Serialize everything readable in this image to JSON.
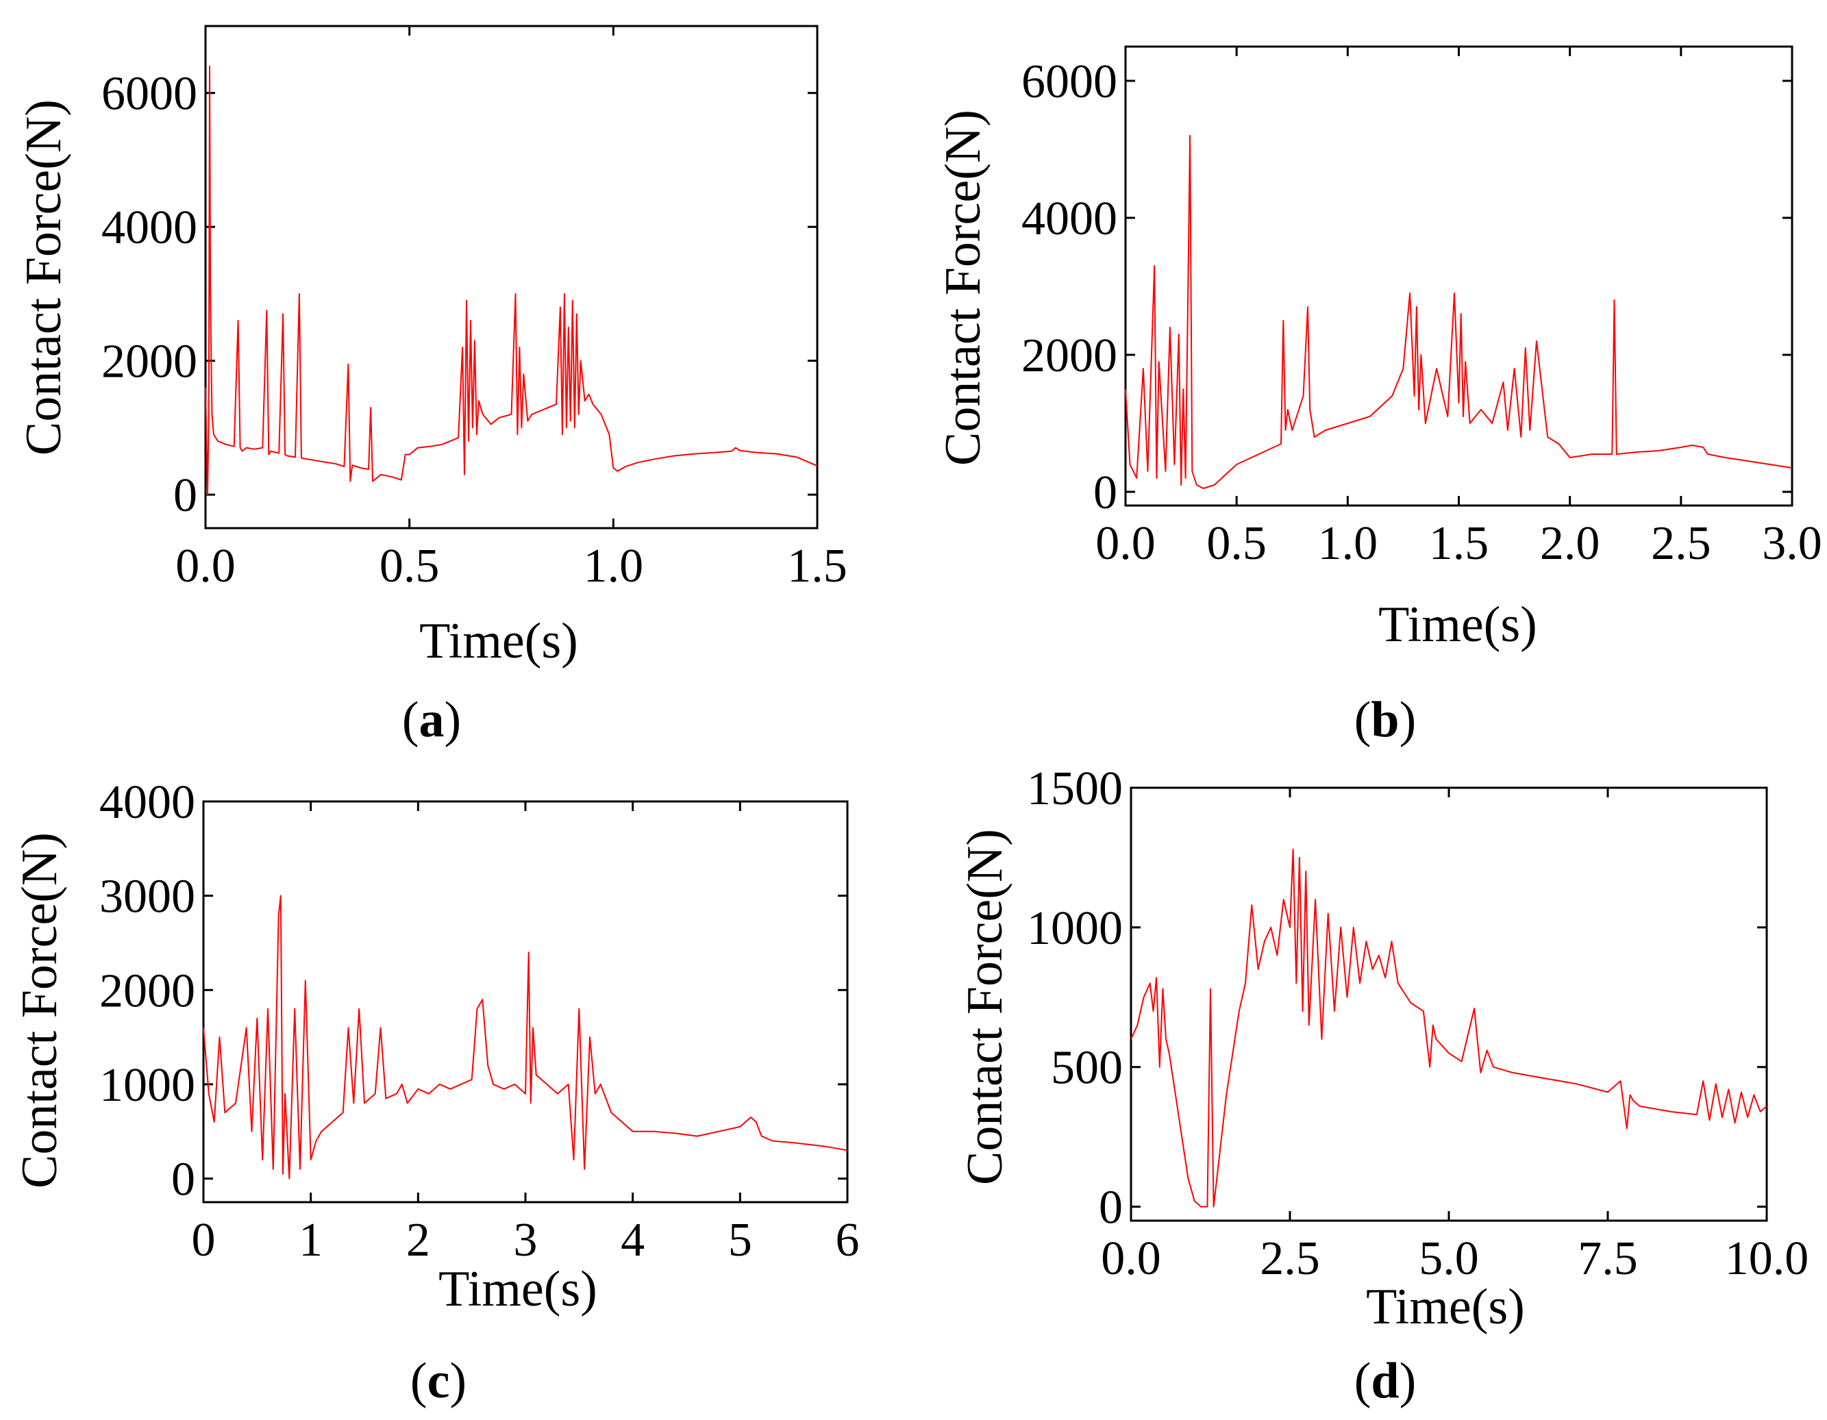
{
  "figure": {
    "panels": [
      "a",
      "b",
      "c",
      "d"
    ]
  },
  "chart_data": [
    {
      "id": "a",
      "type": "line",
      "caption_letter": "a",
      "caption_open": "(",
      "caption_close": ")",
      "xlabel": "Time(s)",
      "ylabel": "Contact Force(N)",
      "xlim": [
        0,
        1.5
      ],
      "ylim": [
        -500,
        7000
      ],
      "xticks": [
        0.0,
        0.5,
        1.0,
        1.5
      ],
      "xtick_labels": [
        "0.0",
        "0.5",
        "1.0",
        "1.5"
      ],
      "yticks": [
        0,
        2000,
        4000,
        6000
      ],
      "ytick_labels": [
        "0",
        "2000",
        "4000",
        "6000"
      ],
      "series": [
        {
          "name": "Contact force",
          "color": "#ff0000",
          "x": [
            0.0,
            0.005,
            0.008,
            0.01,
            0.012,
            0.014,
            0.016,
            0.02,
            0.03,
            0.05,
            0.07,
            0.08,
            0.085,
            0.09,
            0.1,
            0.12,
            0.14,
            0.15,
            0.155,
            0.16,
            0.18,
            0.19,
            0.195,
            0.2,
            0.22,
            0.23,
            0.235,
            0.24,
            0.26,
            0.28,
            0.3,
            0.32,
            0.34,
            0.35,
            0.355,
            0.36,
            0.38,
            0.4,
            0.405,
            0.41,
            0.43,
            0.46,
            0.48,
            0.49,
            0.5,
            0.52,
            0.55,
            0.58,
            0.6,
            0.62,
            0.63,
            0.635,
            0.64,
            0.645,
            0.65,
            0.655,
            0.66,
            0.665,
            0.67,
            0.68,
            0.7,
            0.72,
            0.75,
            0.76,
            0.765,
            0.77,
            0.775,
            0.78,
            0.79,
            0.8,
            0.82,
            0.84,
            0.86,
            0.87,
            0.875,
            0.88,
            0.885,
            0.89,
            0.895,
            0.9,
            0.905,
            0.91,
            0.915,
            0.92,
            0.93,
            0.94,
            0.95,
            0.97,
            0.99,
            1.0,
            1.01,
            1.03,
            1.06,
            1.1,
            1.15,
            1.2,
            1.25,
            1.29,
            1.3,
            1.31,
            1.35,
            1.4,
            1.45,
            1.5
          ],
          "y": [
            1600,
            0,
            1200,
            6400,
            3200,
            2000,
            1200,
            900,
            800,
            750,
            720,
            2600,
            700,
            650,
            700,
            680,
            700,
            2750,
            600,
            650,
            620,
            2700,
            600,
            580,
            560,
            3000,
            550,
            540,
            520,
            500,
            480,
            460,
            420,
            1950,
            200,
            440,
            400,
            380,
            1300,
            200,
            300,
            260,
            220,
            600,
            600,
            700,
            720,
            750,
            800,
            850,
            2200,
            300,
            2900,
            800,
            2600,
            1000,
            2300,
            900,
            1400,
            1200,
            1050,
            1150,
            1200,
            3000,
            900,
            2200,
            1000,
            1800,
            1100,
            1200,
            1250,
            1300,
            1350,
            2800,
            900,
            3000,
            1000,
            2500,
            1100,
            2900,
            1000,
            2700,
            1200,
            2000,
            1400,
            1500,
            1350,
            1200,
            900,
            400,
            350,
            420,
            480,
            530,
            580,
            610,
            630,
            650,
            700,
            660,
            630,
            610,
            560,
            430
          ]
        }
      ]
    },
    {
      "id": "b",
      "type": "line",
      "caption_letter": "b",
      "caption_open": "(",
      "caption_close": ")",
      "xlabel": "Time(s)",
      "ylabel": "Contact Force(N)",
      "xlim": [
        0,
        3.0
      ],
      "ylim": [
        -200,
        6500
      ],
      "xticks": [
        0.0,
        0.5,
        1.0,
        1.5,
        2.0,
        2.5,
        3.0
      ],
      "xtick_labels": [
        "0.0",
        "0.5",
        "1.0",
        "1.5",
        "2.0",
        "2.5",
        "3.0"
      ],
      "yticks": [
        0,
        2000,
        4000,
        6000
      ],
      "ytick_labels": [
        "0",
        "2000",
        "4000",
        "6000"
      ],
      "series": [
        {
          "name": "Contact force",
          "color": "#ff0000",
          "x": [
            0.0,
            0.02,
            0.05,
            0.08,
            0.1,
            0.13,
            0.14,
            0.15,
            0.18,
            0.2,
            0.22,
            0.24,
            0.25,
            0.26,
            0.27,
            0.28,
            0.29,
            0.3,
            0.32,
            0.35,
            0.4,
            0.5,
            0.6,
            0.7,
            0.71,
            0.72,
            0.73,
            0.75,
            0.8,
            0.82,
            0.83,
            0.85,
            0.9,
            1.0,
            1.1,
            1.2,
            1.25,
            1.28,
            1.3,
            1.31,
            1.32,
            1.33,
            1.35,
            1.4,
            1.45,
            1.48,
            1.5,
            1.51,
            1.52,
            1.53,
            1.55,
            1.6,
            1.65,
            1.7,
            1.72,
            1.75,
            1.78,
            1.8,
            1.82,
            1.85,
            1.9,
            1.95,
            2.0,
            2.1,
            2.19,
            2.2,
            2.21,
            2.3,
            2.4,
            2.5,
            2.55,
            2.6,
            2.62,
            2.7,
            2.8,
            2.9,
            3.0
          ],
          "y": [
            1500,
            400,
            200,
            1800,
            300,
            3300,
            200,
            1900,
            300,
            2400,
            400,
            2300,
            100,
            1500,
            200,
            2600,
            5200,
            300,
            100,
            50,
            100,
            400,
            550,
            700,
            2500,
            900,
            1200,
            900,
            1400,
            2700,
            1200,
            800,
            900,
            1000,
            1100,
            1400,
            1800,
            2900,
            1400,
            2700,
            1200,
            2000,
            1000,
            1800,
            1100,
            2900,
            1300,
            2600,
            1100,
            1900,
            1000,
            1200,
            1000,
            1600,
            900,
            1800,
            800,
            2100,
            900,
            2200,
            800,
            700,
            500,
            550,
            550,
            2800,
            550,
            580,
            600,
            650,
            680,
            650,
            550,
            500,
            450,
            400,
            350
          ]
        }
      ]
    },
    {
      "id": "c",
      "type": "line",
      "caption_letter": "c",
      "caption_open": "(",
      "caption_close": ")",
      "xlabel": "Time(s)",
      "ylabel": "Contact Force(N)",
      "xlim": [
        0,
        6
      ],
      "ylim": [
        -250,
        4000
      ],
      "xticks": [
        0,
        1,
        2,
        3,
        4,
        5,
        6
      ],
      "xtick_labels": [
        "0",
        "1",
        "2",
        "3",
        "4",
        "5",
        "6"
      ],
      "yticks": [
        0,
        1000,
        2000,
        3000,
        4000
      ],
      "ytick_labels": [
        "0",
        "1000",
        "2000",
        "3000",
        "4000"
      ],
      "series": [
        {
          "name": "Contact force",
          "color": "#ff0000",
          "x": [
            0.0,
            0.05,
            0.1,
            0.15,
            0.2,
            0.3,
            0.4,
            0.45,
            0.5,
            0.55,
            0.6,
            0.65,
            0.7,
            0.72,
            0.74,
            0.76,
            0.8,
            0.85,
            0.9,
            0.95,
            1.0,
            1.05,
            1.1,
            1.2,
            1.3,
            1.35,
            1.4,
            1.45,
            1.5,
            1.6,
            1.65,
            1.7,
            1.8,
            1.85,
            1.9,
            2.0,
            2.1,
            2.2,
            2.3,
            2.4,
            2.5,
            2.55,
            2.6,
            2.65,
            2.7,
            2.8,
            2.9,
            3.0,
            3.03,
            3.05,
            3.07,
            3.1,
            3.2,
            3.3,
            3.4,
            3.45,
            3.5,
            3.55,
            3.6,
            3.65,
            3.7,
            3.8,
            3.9,
            4.0,
            4.2,
            4.4,
            4.6,
            4.8,
            5.0,
            5.1,
            5.15,
            5.2,
            5.3,
            5.5,
            5.8,
            6.0
          ],
          "y": [
            1600,
            900,
            600,
            1500,
            700,
            800,
            1600,
            500,
            1700,
            200,
            1800,
            100,
            2800,
            3000,
            50,
            900,
            0,
            1800,
            100,
            2100,
            200,
            400,
            500,
            600,
            700,
            1600,
            800,
            1800,
            800,
            900,
            1600,
            850,
            900,
            1000,
            800,
            950,
            900,
            1000,
            950,
            1000,
            1050,
            1800,
            1900,
            1200,
            1000,
            950,
            1000,
            900,
            2400,
            800,
            1600,
            1100,
            1000,
            900,
            1000,
            200,
            1800,
            100,
            1500,
            900,
            1000,
            700,
            600,
            500,
            500,
            480,
            450,
            500,
            550,
            650,
            600,
            450,
            400,
            380,
            340,
            300
          ]
        }
      ]
    },
    {
      "id": "d",
      "type": "line",
      "caption_letter": "d",
      "caption_open": "(",
      "caption_close": ")",
      "xlabel": "Time(s)",
      "ylabel": "Contact Force(N)",
      "xlim": [
        0,
        10.0
      ],
      "ylim": [
        -50,
        1500
      ],
      "xticks": [
        0.0,
        2.5,
        5.0,
        7.5,
        10.0
      ],
      "xtick_labels": [
        "0.0",
        "2.5",
        "5.0",
        "7.5",
        "10.0"
      ],
      "yticks": [
        0,
        500,
        1000,
        1500
      ],
      "ytick_labels": [
        "0",
        "500",
        "1000",
        "1500"
      ],
      "series": [
        {
          "name": "Contact force",
          "color": "#ff0000",
          "x": [
            0.0,
            0.1,
            0.2,
            0.3,
            0.35,
            0.4,
            0.45,
            0.5,
            0.55,
            0.6,
            0.7,
            0.8,
            0.9,
            1.0,
            1.1,
            1.2,
            1.25,
            1.3,
            1.35,
            1.4,
            1.5,
            1.6,
            1.7,
            1.8,
            1.9,
            2.0,
            2.1,
            2.2,
            2.3,
            2.4,
            2.5,
            2.55,
            2.6,
            2.65,
            2.7,
            2.75,
            2.8,
            2.9,
            3.0,
            3.1,
            3.2,
            3.3,
            3.4,
            3.5,
            3.6,
            3.7,
            3.8,
            3.9,
            4.0,
            4.1,
            4.2,
            4.4,
            4.6,
            4.7,
            4.75,
            4.8,
            5.0,
            5.2,
            5.4,
            5.5,
            5.6,
            5.7,
            6.0,
            6.5,
            7.0,
            7.5,
            7.7,
            7.8,
            7.85,
            7.9,
            8.0,
            8.5,
            8.9,
            9.0,
            9.1,
            9.2,
            9.3,
            9.4,
            9.5,
            9.6,
            9.7,
            9.8,
            9.9,
            10.0
          ],
          "y": [
            600,
            650,
            750,
            800,
            700,
            820,
            500,
            780,
            600,
            550,
            400,
            250,
            100,
            20,
            0,
            0,
            780,
            0,
            100,
            200,
            400,
            550,
            700,
            800,
            1080,
            850,
            950,
            1000,
            900,
            1100,
            1000,
            1280,
            800,
            1250,
            700,
            1200,
            650,
            1100,
            600,
            1050,
            700,
            1000,
            750,
            1000,
            800,
            950,
            850,
            900,
            820,
            950,
            800,
            730,
            700,
            500,
            650,
            600,
            550,
            520,
            710,
            480,
            560,
            500,
            480,
            460,
            440,
            410,
            450,
            280,
            400,
            380,
            360,
            340,
            330,
            450,
            310,
            440,
            320,
            420,
            300,
            410,
            320,
            400,
            340,
            360
          ]
        }
      ]
    }
  ]
}
